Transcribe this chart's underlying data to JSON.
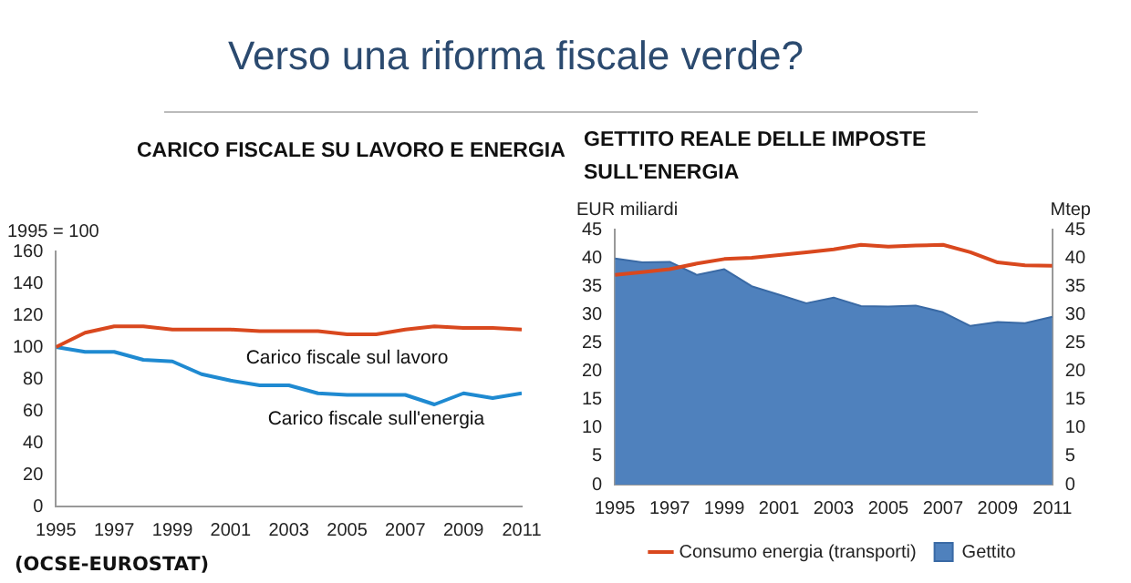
{
  "chart_data": [
    {
      "type": "line",
      "title": "CARICO FISCALE SU LAVORO E ENERGIA",
      "ylabel": "1995 = 100",
      "annotations": [
        "Verso una riforma fiscale verde?",
        "(OCSE-EUROSTAT)"
      ],
      "x": [
        1995,
        1996,
        1997,
        1998,
        1999,
        2000,
        2001,
        2002,
        2003,
        2004,
        2005,
        2006,
        2007,
        2008,
        2009,
        2010,
        2011
      ],
      "series": [
        {
          "name": "Carico fiscale sul lavoro",
          "color": "#d9481e",
          "values": [
            100,
            109,
            113,
            113,
            111,
            111,
            111,
            110,
            110,
            110,
            108,
            108,
            111,
            113,
            112,
            112,
            111
          ]
        },
        {
          "name": "Carico fiscale sull'energia",
          "color": "#1f8ad1",
          "values": [
            100,
            97,
            97,
            92,
            91,
            83,
            79,
            76,
            76,
            71,
            70,
            70,
            70,
            64,
            71,
            68,
            71
          ]
        }
      ],
      "xlim": [
        1995,
        2011
      ],
      "xticks": [
        1995,
        1997,
        1999,
        2001,
        2003,
        2005,
        2007,
        2009,
        2011
      ],
      "ylim": [
        0,
        160
      ],
      "yticks": [
        0,
        20,
        40,
        60,
        80,
        100,
        120,
        140,
        160
      ],
      "grid": false,
      "legend": false,
      "marker": "none"
    },
    {
      "type": "area",
      "title": "GETTITO REALE DELLE IMPOSTE SULL'ENERGIA",
      "ylabel": "EUR miliardi",
      "y2label": "Mtep",
      "x": [
        1995,
        1996,
        1997,
        1998,
        1999,
        2000,
        2001,
        2002,
        2003,
        2004,
        2005,
        2006,
        2007,
        2008,
        2009,
        2010,
        2011
      ],
      "series": [
        {
          "name": "Gettito",
          "color": "#4f81bd",
          "values": [
            39.9,
            39.2,
            39.3,
            37,
            38,
            35,
            33.5,
            32,
            33,
            31.5,
            31.4,
            31.6,
            30.4,
            28,
            28.7,
            28.5,
            29.6
          ]
        },
        {
          "name": "Consumo energia (transporti)",
          "type": "line",
          "axis": "y2",
          "color": "#d9481e",
          "values": [
            37,
            37.5,
            38,
            39,
            39.8,
            40,
            40.5,
            41,
            41.5,
            42.3,
            42,
            42.2,
            42.3,
            41,
            39.2,
            38.7,
            38.6
          ]
        }
      ],
      "xlim": [
        1995,
        2011
      ],
      "xticks": [
        1995,
        1997,
        1999,
        2001,
        2003,
        2005,
        2007,
        2009,
        2011
      ],
      "ylim": [
        0,
        45
      ],
      "yticks": [
        0,
        5,
        10,
        15,
        20,
        25,
        30,
        35,
        40,
        45
      ],
      "y2lim": [
        0,
        45
      ],
      "y2ticks": [
        0,
        5,
        10,
        15,
        20,
        25,
        30,
        35,
        40,
        45
      ],
      "grid": false,
      "legend": "bottom",
      "marker": "none"
    }
  ]
}
